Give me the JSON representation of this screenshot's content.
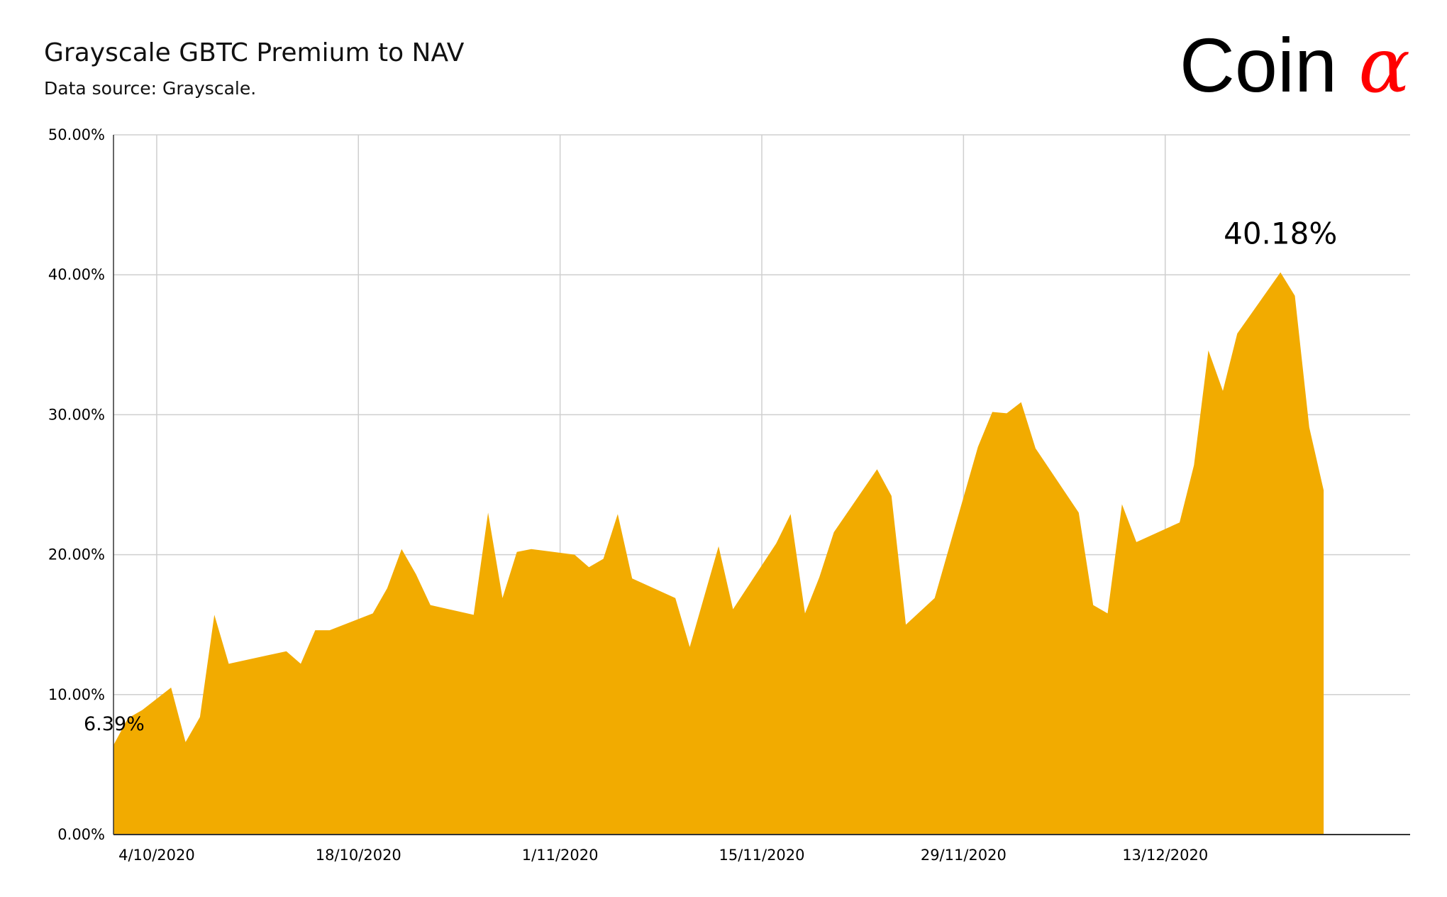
{
  "header": {
    "title": "Grayscale GBTC Premium to NAV",
    "subtitle": "Data source: Grayscale."
  },
  "brand": {
    "text": "Coin",
    "symbol": "α",
    "text_color": "#000000",
    "symbol_color": "#ff0000"
  },
  "chart_data": {
    "type": "area",
    "title": "Grayscale GBTC Premium to NAV",
    "subtitle": "Data source: Grayscale.",
    "xlabel": "",
    "ylabel": "",
    "x_start": "2020-10-01",
    "x_end": "2020-12-30",
    "xlim": [
      "2020-10-01",
      "2020-12-30"
    ],
    "ylim": [
      0,
      50
    ],
    "y_ticks": [
      "0.00%",
      "10.00%",
      "20.00%",
      "30.00%",
      "40.00%",
      "50.00%"
    ],
    "x_ticks": [
      {
        "date": "2020-10-04",
        "label": "4/10/2020"
      },
      {
        "date": "2020-10-18",
        "label": "18/10/2020"
      },
      {
        "date": "2020-11-01",
        "label": "1/11/2020"
      },
      {
        "date": "2020-11-15",
        "label": "15/11/2020"
      },
      {
        "date": "2020-11-29",
        "label": "29/11/2020"
      },
      {
        "date": "2020-12-13",
        "label": "13/12/2020"
      }
    ],
    "grid": true,
    "legend": "none",
    "fill_color": "#f2ab00",
    "series": [
      {
        "values": [
          [
            "2020-10-01",
            6.39
          ],
          [
            "2020-10-02",
            8.3
          ],
          [
            "2020-10-03",
            8.9
          ],
          [
            "2020-10-05",
            10.5
          ],
          [
            "2020-10-06",
            6.6
          ],
          [
            "2020-10-07",
            8.4
          ],
          [
            "2020-10-08",
            15.7
          ],
          [
            "2020-10-09",
            12.2
          ],
          [
            "2020-10-13",
            13.1
          ],
          [
            "2020-10-14",
            12.2
          ],
          [
            "2020-10-15",
            14.6
          ],
          [
            "2020-10-16",
            14.6
          ],
          [
            "2020-10-19",
            15.8
          ],
          [
            "2020-10-20",
            17.6
          ],
          [
            "2020-10-21",
            20.4
          ],
          [
            "2020-10-22",
            18.6
          ],
          [
            "2020-10-23",
            16.4
          ],
          [
            "2020-10-26",
            15.7
          ],
          [
            "2020-10-27",
            23.0
          ],
          [
            "2020-10-28",
            16.9
          ],
          [
            "2020-10-29",
            20.2
          ],
          [
            "2020-10-30",
            20.4
          ],
          [
            "2020-11-02",
            20.0
          ],
          [
            "2020-11-03",
            19.1
          ],
          [
            "2020-11-04",
            19.7
          ],
          [
            "2020-11-05",
            22.9
          ],
          [
            "2020-11-06",
            18.3
          ],
          [
            "2020-11-09",
            16.9
          ],
          [
            "2020-11-10",
            13.4
          ],
          [
            "2020-11-12",
            20.6
          ],
          [
            "2020-11-13",
            16.1
          ],
          [
            "2020-11-16",
            20.8
          ],
          [
            "2020-11-17",
            22.9
          ],
          [
            "2020-11-18",
            15.8
          ],
          [
            "2020-11-19",
            18.4
          ],
          [
            "2020-11-20",
            21.6
          ],
          [
            "2020-11-23",
            26.1
          ],
          [
            "2020-11-24",
            24.2
          ],
          [
            "2020-11-25",
            15.0
          ],
          [
            "2020-11-27",
            16.9
          ],
          [
            "2020-11-30",
            27.7
          ],
          [
            "2020-12-01",
            30.2
          ],
          [
            "2020-12-02",
            30.1
          ],
          [
            "2020-12-03",
            30.9
          ],
          [
            "2020-12-04",
            27.6
          ],
          [
            "2020-12-07",
            23.0
          ],
          [
            "2020-12-08",
            16.4
          ],
          [
            "2020-12-09",
            15.8
          ],
          [
            "2020-12-10",
            23.6
          ],
          [
            "2020-12-11",
            20.9
          ],
          [
            "2020-12-14",
            22.3
          ],
          [
            "2020-12-15",
            26.4
          ],
          [
            "2020-12-16",
            34.6
          ],
          [
            "2020-12-17",
            31.7
          ],
          [
            "2020-12-18",
            35.8
          ],
          [
            "2020-12-21",
            40.18
          ],
          [
            "2020-12-22",
            38.5
          ],
          [
            "2020-12-23",
            29.1
          ],
          [
            "2020-12-24",
            24.6
          ]
        ]
      }
    ],
    "annotations": [
      {
        "text": "6.39%",
        "date": "2020-10-01",
        "value": 6.39
      },
      {
        "text": "40.18%",
        "date": "2020-12-21",
        "value": 40.18
      }
    ]
  }
}
